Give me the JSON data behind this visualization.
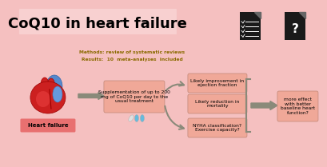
{
  "bg_color": "#f5c0c0",
  "title_bg_color": "#f5b8b8",
  "title_text": "CoQ10 in heart failure",
  "title_fontsize": 13,
  "methods_line1": "Methods: review of systematic reviews",
  "methods_line2": "Results:  10  meta-analyses  included",
  "methods_color": "#8a6a00",
  "box_color": "#f0a898",
  "box_edge_color": "#c08878",
  "supplement_text": "Supplementation of up to 200\nmg of CoQ10 per day to the\nusual treatment",
  "box1_text": "Likely improvement in\nejection fraction",
  "box2_text": "Likely reduction in\nmortality",
  "box3_text": "NYHA classification?\nExercise capacity?",
  "box4_text": "more effect\nwith better\nbaseline heart\nfunction?",
  "heart_failure_text": "Heart failure",
  "arrow_color": "#8a8a7a",
  "bracket_color": "#8a8a7a",
  "text_fontsize": 4.3,
  "methods_fontsize": 4.3,
  "hf_label_color": "#e06060",
  "hf_text_color": "#000000"
}
